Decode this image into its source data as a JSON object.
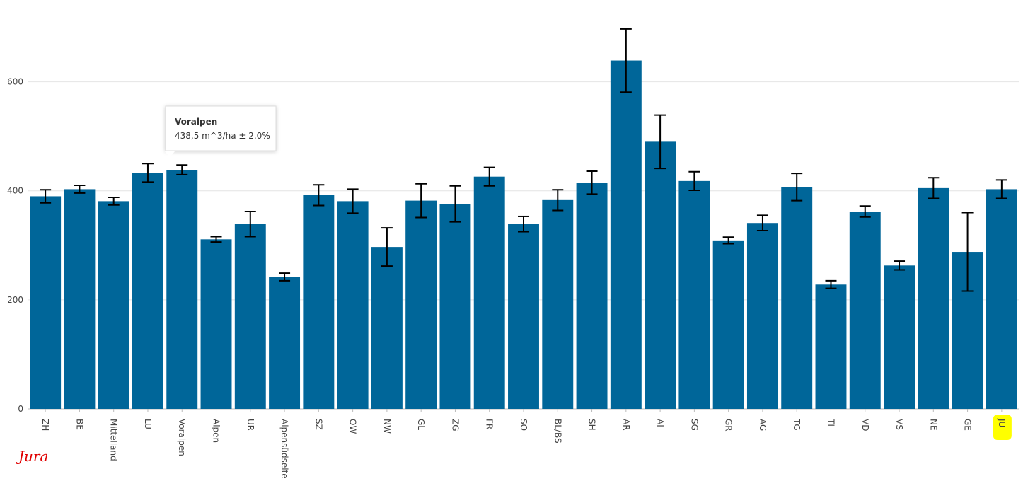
{
  "chart_data": {
    "type": "bar",
    "categories": [
      "ZH",
      "BE",
      "Mittelland",
      "LU",
      "Voralpen",
      "Alpen",
      "UR",
      "Alpensüdseite",
      "SZ",
      "OW",
      "NW",
      "GL",
      "ZG",
      "FR",
      "SO",
      "BL/BS",
      "SH",
      "AR",
      "AI",
      "SG",
      "GR",
      "AG",
      "TG",
      "TI",
      "VD",
      "VS",
      "NE",
      "GE",
      "JU"
    ],
    "values": [
      390,
      403,
      381,
      433,
      438.5,
      311,
      339,
      242,
      392,
      381,
      297,
      382,
      376,
      426,
      339,
      383,
      415,
      639,
      490,
      418,
      309,
      341,
      407,
      228,
      362,
      263,
      405,
      288,
      403
    ],
    "errors": [
      12,
      7,
      7,
      17,
      8.8,
      5,
      23,
      7,
      19,
      22,
      35,
      31,
      33,
      17,
      14,
      19,
      21,
      58,
      49,
      17,
      6,
      14,
      25,
      7,
      10,
      8,
      19,
      72,
      17
    ],
    "color": "#006699",
    "ylim": [
      0,
      750
    ],
    "yticks": [
      0,
      200,
      400,
      600
    ],
    "grid": true,
    "tooltip": {
      "title": "Voralpen",
      "text": "438,5 m^3/ha ± 2.0%"
    },
    "annotation": "Jura"
  }
}
